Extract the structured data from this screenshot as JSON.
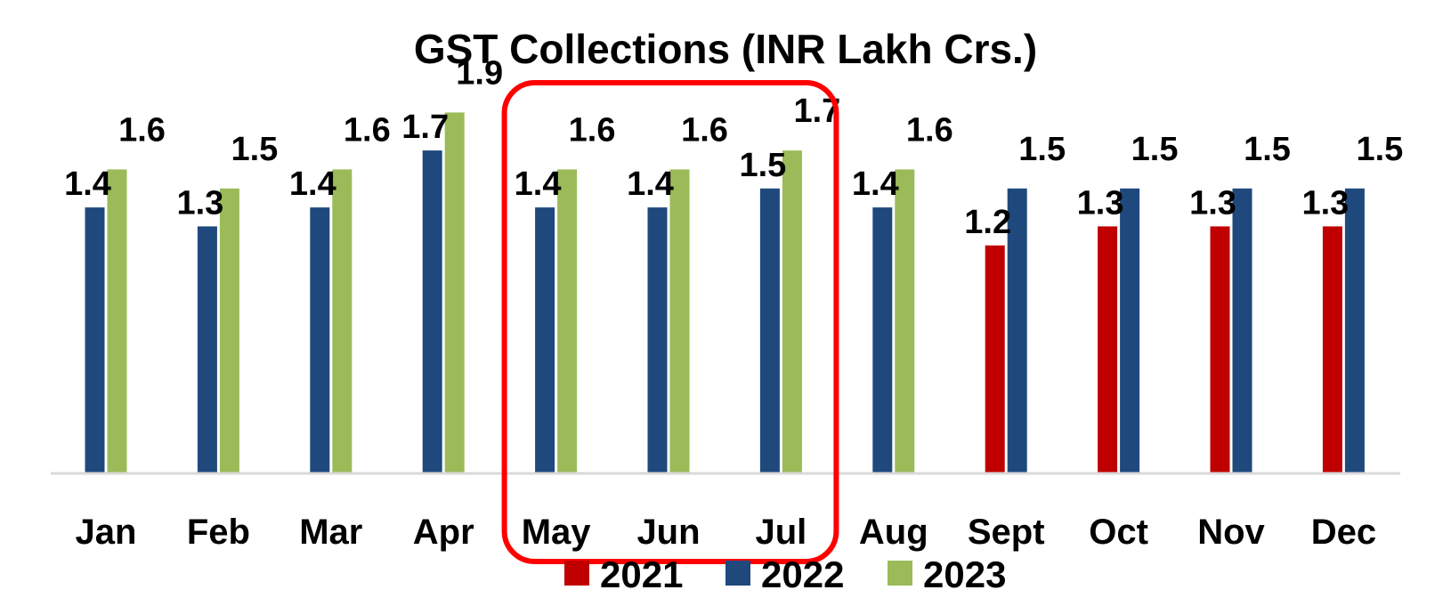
{
  "chart_data": {
    "type": "bar",
    "title": "GST Collections (INR Lakh Crs.)",
    "xlabel": "",
    "ylabel": "",
    "ylim": [
      0,
      1.95
    ],
    "grid": false,
    "legend_position": "bottom",
    "categories": [
      "Jan",
      "Feb",
      "Mar",
      "Apr",
      "May",
      "Jun",
      "Jul",
      "Aug",
      "Sept",
      "Oct",
      "Nov",
      "Dec"
    ],
    "series": [
      {
        "name": "2021",
        "color": "#c00000",
        "values": [
          null,
          null,
          null,
          null,
          null,
          null,
          null,
          null,
          1.2,
          1.3,
          1.3,
          1.3
        ]
      },
      {
        "name": "2022",
        "color": "#1f497d",
        "values": [
          1.4,
          1.3,
          1.4,
          1.7,
          1.4,
          1.4,
          1.5,
          1.4,
          1.5,
          1.5,
          1.5,
          1.5
        ]
      },
      {
        "name": "2023",
        "color": "#9bbb59",
        "values": [
          1.6,
          1.5,
          1.6,
          1.9,
          1.6,
          1.6,
          1.7,
          1.6,
          null,
          null,
          null,
          null
        ]
      }
    ],
    "highlight": {
      "categories": [
        "May",
        "Jun",
        "Jul"
      ],
      "color": "#ff0000"
    }
  }
}
